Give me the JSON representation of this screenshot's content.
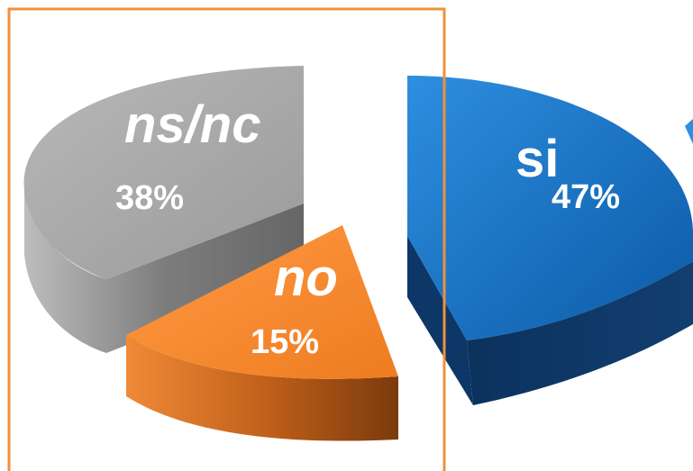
{
  "chart_data": {
    "type": "pie",
    "title": "",
    "slices": [
      {
        "label": "si",
        "value": 47,
        "value_label": "47%",
        "color": "#1874c9"
      },
      {
        "label": "no",
        "value": 15,
        "value_label": "15%",
        "color": "#f28a33"
      },
      {
        "label": "ns/nc",
        "value": 38,
        "value_label": "38%",
        "color": "#a6a6a6"
      }
    ],
    "exploded": true,
    "three_d": true,
    "highlight_box_color": "#f0913a"
  }
}
